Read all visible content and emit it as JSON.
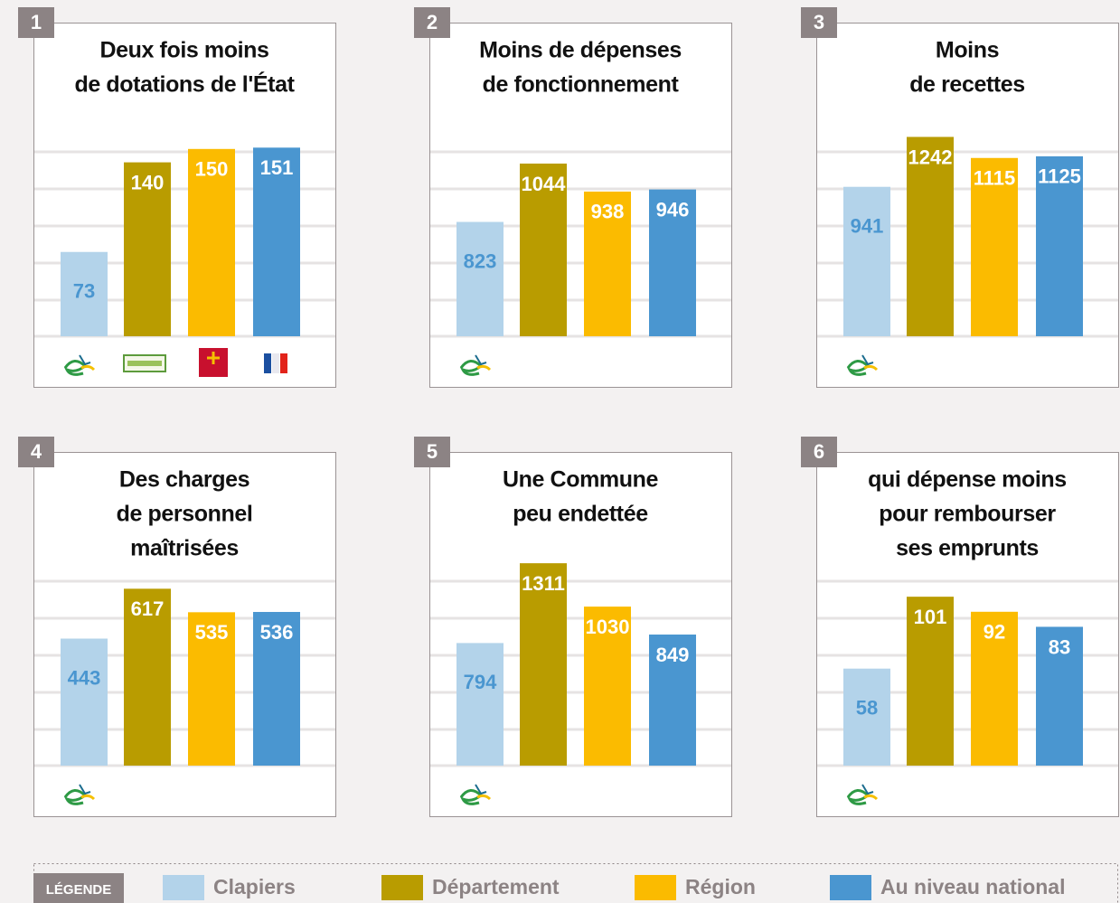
{
  "chart_data": [
    {
      "type": "bar",
      "number": "1",
      "title": [
        "Deux fois moins",
        "de dotations de l'État"
      ],
      "values": [
        73,
        140,
        150,
        151
      ],
      "ylim": [
        10,
        160
      ]
    },
    {
      "type": "bar",
      "number": "2",
      "title": [
        "Moins de dépenses",
        "de fonctionnement"
      ],
      "values": [
        823,
        1044,
        938,
        946
      ],
      "ylim": [
        390,
        1150
      ]
    },
    {
      "type": "bar",
      "number": "3",
      "title": [
        "Moins",
        "de recettes"
      ],
      "values": [
        941,
        1242,
        1115,
        1125
      ],
      "ylim": [
        40,
        1250
      ]
    },
    {
      "type": "bar",
      "number": "4",
      "title": [
        "Des charges",
        "de personnel",
        "maîtrisées"
      ],
      "values": [
        443,
        617,
        535,
        536
      ],
      "ylim": [
        0,
        700
      ]
    },
    {
      "type": "bar",
      "number": "5",
      "title": [
        "Une Commune",
        "peu endettée"
      ],
      "values": [
        794,
        1311,
        1030,
        849
      ],
      "ylim": [
        0,
        1300
      ]
    },
    {
      "type": "bar",
      "number": "6",
      "title": [
        "qui dépense moins",
        "pour rembourser",
        "ses emprunts"
      ],
      "values": [
        58,
        101,
        92,
        83
      ],
      "ylim": [
        0,
        120
      ]
    }
  ],
  "legend": {
    "title": "LÉGENDE",
    "series": [
      {
        "name": "Clapiers",
        "color": "#b3d3ea"
      },
      {
        "name": "Département",
        "color": "#b99c00"
      },
      {
        "name": "Région",
        "color": "#fbbb00"
      },
      {
        "name": "Au niveau national",
        "color": "#4a96d0"
      }
    ]
  }
}
